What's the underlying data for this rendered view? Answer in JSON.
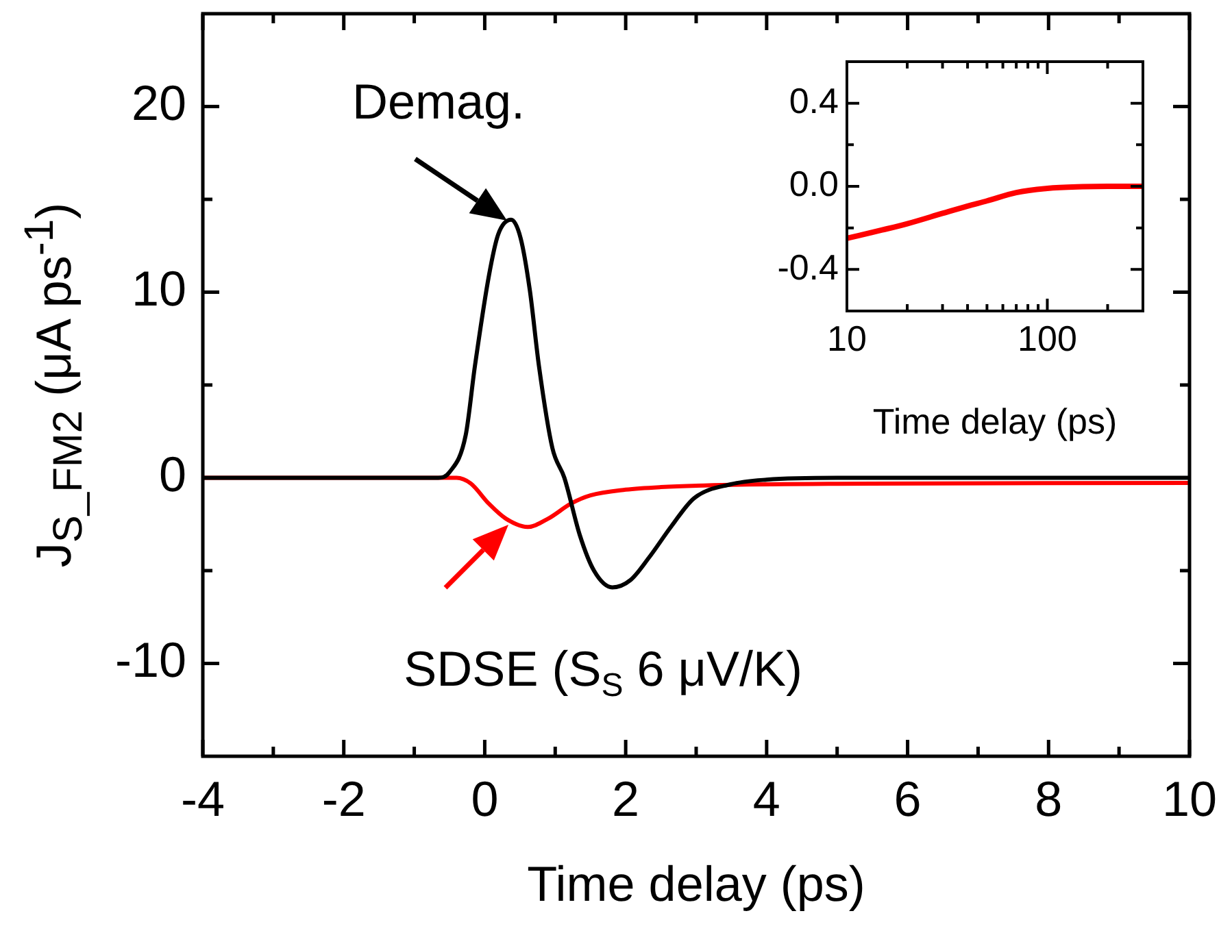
{
  "chart_data": [
    {
      "type": "line",
      "xlabel": "Time delay (ps)",
      "ylabel": "J$_{S_FM2}$ (μA ps$^{-1}$)",
      "xlim": [
        -4,
        10
      ],
      "xticks": [
        -4,
        {
          "value": -3,
          "label": null
        },
        -2,
        {
          "value": -1,
          "label": null
        },
        0,
        {
          "value": 1,
          "label": null
        },
        2,
        {
          "value": 3,
          "label": null
        },
        4,
        {
          "value": 5,
          "label": null
        },
        6,
        {
          "value": 7,
          "label": null
        },
        8,
        {
          "value": 9,
          "label": null
        },
        10
      ],
      "ylim": [
        -15,
        25
      ],
      "yticks": [
        -10,
        {
          "value": -5,
          "label": null
        },
        0,
        {
          "value": 5,
          "label": null
        },
        10,
        {
          "value": 15,
          "label": null
        },
        20
      ],
      "series": [
        {
          "color": "#000000",
          "x": [
            -4,
            -1,
            -0.66,
            -0.5,
            -0.27,
            -0.14,
            0.06,
            0.19,
            0.375,
            0.51,
            0.64,
            0.77,
            0.96,
            1.13,
            1.35,
            1.55,
            1.81,
            2.07,
            2.33,
            2.65,
            2.97,
            3.49,
            4,
            5,
            10
          ],
          "values": [
            0,
            0,
            0,
            0.3,
            2.3,
            6,
            10.9,
            13.1,
            13.9,
            12.9,
            10.1,
            6,
            1.6,
            0,
            -3.1,
            -5,
            -5.9,
            -5.5,
            -4.3,
            -2.6,
            -1.1,
            -0.35,
            -0.1,
            0,
            0
          ]
        },
        {
          "color": "#ff0000",
          "x": [
            -4,
            -0.4,
            -0.2,
            0.06,
            0.3,
            0.61,
            0.9,
            1.22,
            1.5,
            2,
            2.5,
            3.5,
            5,
            10
          ],
          "values": [
            0,
            0,
            -0.3,
            -1.4,
            -2.2,
            -2.65,
            -2.2,
            -1.4,
            -0.95,
            -0.64,
            -0.5,
            -0.38,
            -0.32,
            -0.28
          ]
        }
      ],
      "annotations": [
        {
          "text": "Demag.",
          "x": 0.375,
          "y": 13.9
        },
        {
          "text": "SDSE (S$_{S}$ 6 μV/K)",
          "x": 0.61,
          "y": -2.65
        }
      ]
    },
    {
      "type": "line",
      "xlabel": "Time delay (ps)",
      "log": "x",
      "xlim": [
        10,
        300
      ],
      "xticks": [
        10,
        {
          "value": 20,
          "label": null
        },
        {
          "value": 30,
          "label": null
        },
        {
          "value": 40,
          "label": null
        },
        {
          "value": 50,
          "label": null
        },
        {
          "value": 60,
          "label": null
        },
        {
          "value": 70,
          "label": null
        },
        {
          "value": 80,
          "label": null
        },
        {
          "value": 90,
          "label": null
        },
        100,
        {
          "value": 200,
          "label": null
        }
      ],
      "ylim": [
        -0.6,
        0.6
      ],
      "yticks": [
        -0.4,
        {
          "value": -0.2,
          "label": null
        },
        {
          "value": 0,
          "label": "0.0"
        },
        {
          "value": 0.2,
          "label": null
        },
        0.4
      ],
      "series": [
        {
          "color": "#ff0000",
          "x": [
            10,
            15,
            20,
            30,
            40,
            50,
            70,
            100,
            150,
            200,
            300
          ],
          "values": [
            -0.25,
            -0.21,
            -0.18,
            -0.13,
            -0.095,
            -0.07,
            -0.03,
            -0.01,
            -0.002,
            0,
            0
          ]
        }
      ]
    }
  ]
}
